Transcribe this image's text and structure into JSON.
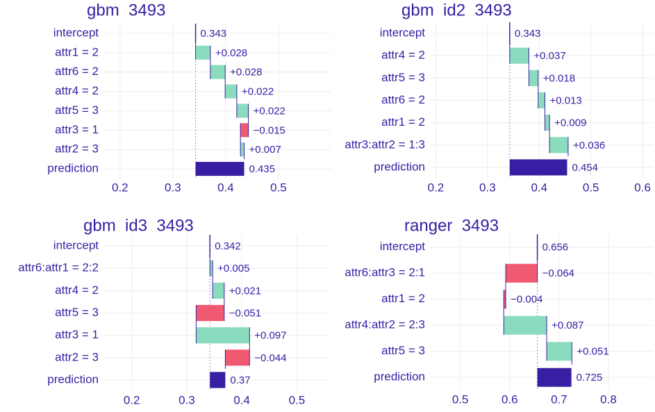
{
  "chart_data": [
    {
      "type": "waterfall",
      "title": "gbm  3493",
      "categories": [
        "intercept",
        "attr1 = 2",
        "attr6 = 2",
        "attr4 = 2",
        "attr5 = 3",
        "attr3 = 1",
        "attr2 = 3",
        "prediction"
      ],
      "values": [
        0.343,
        0.028,
        0.028,
        0.022,
        0.022,
        -0.015,
        0.007,
        0.435
      ],
      "value_labels": [
        "0.343",
        "+0.028",
        "+0.028",
        "+0.022",
        "+0.022",
        "−0.015",
        "+0.007",
        "0.435"
      ],
      "xlim": [
        0.17,
        0.6
      ],
      "xticks": [
        0.2,
        0.3,
        0.4,
        0.5
      ],
      "color": "#371ea3",
      "positive_color": "#8bdcbe",
      "negative_color": "#f05a71",
      "grid": true
    },
    {
      "type": "waterfall",
      "title": "gbm  id2  3493",
      "categories": [
        "intercept",
        "attr4 = 2",
        "attr5 = 3",
        "attr6 = 2",
        "attr1 = 2",
        "attr3:attr2 = 1:3",
        "prediction"
      ],
      "values": [
        0.343,
        0.037,
        0.018,
        0.013,
        0.009,
        0.036,
        0.454
      ],
      "value_labels": [
        "0.343",
        "+0.037",
        "+0.018",
        "+0.013",
        "+0.009",
        "+0.036",
        "0.454"
      ],
      "xlim": [
        0.19,
        0.62
      ],
      "xticks": [
        0.2,
        0.3,
        0.4,
        0.5,
        0.6
      ],
      "color": "#371ea3",
      "positive_color": "#8bdcbe",
      "negative_color": "#f05a71",
      "grid": true
    },
    {
      "type": "waterfall",
      "title": "gbm  id3  3493",
      "categories": [
        "intercept",
        "attr6:attr1 = 2:2",
        "attr4 = 2",
        "attr5 = 3",
        "attr3 = 1",
        "attr2 = 3",
        "prediction"
      ],
      "values": [
        0.342,
        0.005,
        0.021,
        -0.051,
        0.097,
        -0.044,
        0.37
      ],
      "value_labels": [
        "0.342",
        "+0.005",
        "+0.021",
        "−0.051",
        "+0.097",
        "−0.044",
        "0.37"
      ],
      "xlim": [
        0.15,
        0.56
      ],
      "xticks": [
        0.2,
        0.3,
        0.4,
        0.5
      ],
      "color": "#371ea3",
      "positive_color": "#8bdcbe",
      "negative_color": "#f05a71",
      "grid": true
    },
    {
      "type": "waterfall",
      "title": "ranger  3493",
      "categories": [
        "intercept",
        "attr6:attr3 = 2:1",
        "attr1 = 2",
        "attr4:attr2 = 2:3",
        "attr5 = 3",
        "prediction"
      ],
      "values": [
        0.656,
        -0.064,
        -0.004,
        0.087,
        0.051,
        0.725
      ],
      "value_labels": [
        "0.656",
        "−0.064",
        "−0.004",
        "+0.087",
        "+0.051",
        "0.725"
      ],
      "xlim": [
        0.44,
        0.89
      ],
      "xticks": [
        0.5,
        0.6,
        0.7,
        0.8
      ],
      "color": "#371ea3",
      "positive_color": "#8bdcbe",
      "negative_color": "#f05a71",
      "grid": true
    }
  ]
}
